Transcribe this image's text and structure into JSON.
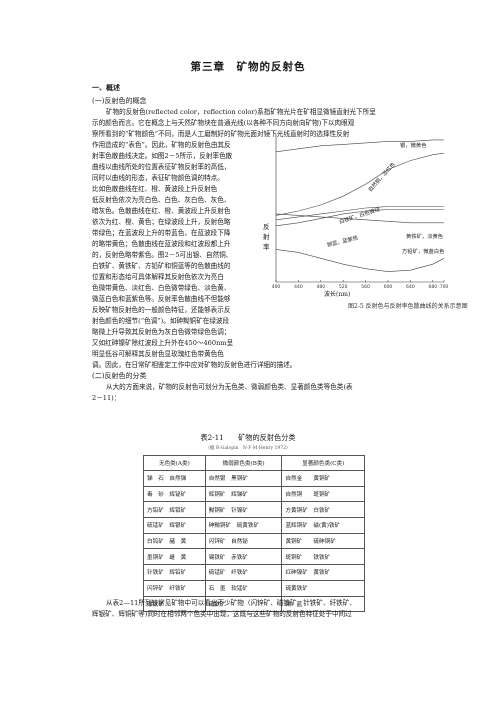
{
  "title": "第三章　矿物的反射色",
  "section1": "一、概述",
  "sub1": "(一)反射色的概念",
  "para1_lines": [
    "矿物的反射色(reflected color，reflection color)系指矿物光片在矿相显微镜直射光下所呈",
    "示的颜色而言。它在概念上与天然矿物块在普通光线(以各种不同方向射向矿物)下以肉眼观",
    "察所看到的“矿物颜色”不同，而是人工磨制好的矿物光面对镜下光线直射时的选择性反射",
    "作用造成的“表色”。因此，矿物的反射色由其反"
  ],
  "para1_left_lines": [
    "射率色散曲线决定。如图2－5所示，反射率色散",
    "曲线以曲线所处的位置表征矿物反射率的高低，",
    "同时以曲线的形态，表征矿物颜色调的特点。",
    "比如色散曲线在红、橙、黄波段上升反射色",
    "低反射色依次为亮白色、白色、灰白色、灰色、",
    "暗灰色。色散曲线在红、橙、黄波段上升反射色",
    "依次为红、橙、黄色；在绿波段上升，反射色略",
    "带绿色；在蓝波段上升的带蓝色，在蓝波段下降",
    "的略带黄色；色散曲线在蓝波段和红波段都上升",
    "的，反射色略带紫色。图2－5可出银、自然铜、",
    "白铁矿、黄铁矿、方铅矿和铜蓝等的色散曲线的",
    "位置和形态给可具体解释其反射色依次为亮白",
    "色微带黄色、淡红色、白色微带绿色、淡色黄、",
    "微蓝白色和蓝紫色等。反射率色散曲线不但能够",
    "反映矿物反射色的一般颜色特征，还能够表示反",
    "射色颜色的细节(“色调”)。如砷黝铜矿在绿波段",
    "略微上升导致其反射色为灰白色微带绿色色调；",
    "又如红砷镍矿除红波段上升外在450～460nm呈"
  ],
  "para1_end_lines": [
    "明显低谷可解释其反射色显玫瑰红色带黄色色",
    "调。因此，在日常矿相鉴定工作中应对矿物的反射色进行详细的描述。"
  ],
  "sub2": "(二)反射色的分类",
  "para2_lines": [
    "从大的方面来说，矿物的反射色可划分为无色类、微弱颜色类、显著颜色类等色类(表",
    "2－11)："
  ],
  "chart_data": {
    "type": "line",
    "title": "",
    "xlabel": "波长(nm)",
    "ylabel": "反射率",
    "xlim": [
      400,
      700
    ],
    "xticks": [
      400,
      440,
      480,
      520,
      560,
      600,
      640,
      680,
      700
    ],
    "series": [
      {
        "name": "银，微黄色",
        "x": [
          400,
          440,
          480,
          520,
          560,
          600,
          640,
          680,
          700
        ],
        "y": [
          88,
          90,
          92,
          93,
          94,
          95,
          95,
          96,
          96
        ]
      },
      {
        "name": "自然铜，淡红色",
        "x": [
          400,
          440,
          480,
          520,
          560,
          600,
          640,
          680,
          700
        ],
        "y": [
          45,
          48,
          52,
          58,
          66,
          76,
          82,
          86,
          87
        ]
      },
      {
        "name": "白铁矿，白色微绿",
        "x": [
          400,
          440,
          480,
          520,
          560,
          600,
          640,
          680,
          700
        ],
        "y": [
          42,
          44,
          46,
          48,
          50,
          51,
          51,
          51,
          51
        ]
      },
      {
        "name": "黄铁矿，淡黄色",
        "x": [
          400,
          440,
          480,
          520,
          560,
          600,
          640,
          680,
          700
        ],
        "y": [
          38,
          40,
          43,
          46,
          48,
          49,
          49,
          49,
          49
        ]
      },
      {
        "name": "方铅矿，微蓝白色",
        "x": [
          400,
          440,
          480,
          520,
          560,
          600,
          640,
          680,
          700
        ],
        "y": [
          46,
          45,
          44,
          43,
          42,
          41,
          40,
          40,
          40
        ]
      },
      {
        "name": "铜蓝，蓝紫色",
        "x": [
          400,
          440,
          480,
          520,
          560,
          600,
          640,
          680,
          700
        ],
        "y": [
          22,
          20,
          16,
          12,
          9,
          7,
          8,
          12,
          16
        ]
      }
    ]
  },
  "chart_labels": {
    "silver": "银，微黄色",
    "copper": "自然铜，淡红色",
    "marcasite": "白铁矿，白色微绿",
    "pyrite": "黄铁矿，淡黄色",
    "galena": "方铅矿，微蓝白色",
    "covellite": "铜蓝，蓝紫色",
    "ylabel": "反射率",
    "xlabel": "波长(nm)"
  },
  "caption": "图2-5 反射色与反射率色散曲线的关系示意图",
  "table_title": "表2-11　　矿物的反射色分类",
  "table_note": "（据 R·Galopin　N·F·M·Henry 1972）",
  "table_headers": [
    "无色类(A类)",
    "微弱颜色类(B类)",
    "显著颜色类(C类)"
  ],
  "table_rows": [
    [
      [
        "锑",
        "石"
      ],
      [
        "自然锑"
      ],
      [
        "黑铜矿"
      ],
      [
        "黝铜矿"
      ],
      [
        "自然金"
      ],
      [
        "黄铜矿"
      ]
    ],
    [
      [
        "辉",
        "砷"
      ],
      [
        "辉铜矿"
      ],
      [
        "辉铜矿"
      ],
      [
        "辉铜矿"
      ],
      [
        "自然铜"
      ],
      [
        "斑铜矿"
      ]
    ]
  ],
  "table_cells": [
    [
      "锑　石　自然锑",
      "自然银　黑铜矿",
      "自然金　　黄铜矿"
    ],
    [
      "毒　砂　辉铋矿",
      "辉铜矿　辉锑矿",
      "自然铜　　斑铜矿"
    ],
    [
      "方铅矿　辉钼矿",
      "黝铜矿　针镍矿",
      "方黄铜矿　白铁矿"
    ],
    [
      "硫锰矿　辉银矿",
      "砷黝铜矿　硫黄铁矿",
      "蓝辉铜矿　磁(黄)铁矿"
    ],
    [
      "白钨矿　赭　黄",
      "闪锌矿　自然铋",
      "黄铜矿　　硫砷铜矿"
    ],
    [
      "墨铜矿　雌　黄",
      "锡铁矿　赤铁矿",
      "斑铜矿　　铁铁矿"
    ],
    [
      "针铁矿　辉铅矿",
      "硫锰矿　纤铁矿",
      "红砷镍矿　黄铁矿"
    ],
    [
      "闪锌矿　纤铁矿",
      "石　墨　软锰矿",
      "硫黄铁矿"
    ],
    [
      "磁铁矿",
      "硫铁矿",
      "铜　蓝"
    ]
  ],
  "footer_lines": [
    "从表2—11所列较常见矿物中可以看出不少矿物（闪锌矿、磁铁矿、针铁矿、纤铁矿、",
    "辉银矿、辉铜矿等)同时在相邻两个色类中出现，这既与这些矿物的反射色特征处于中间过"
  ]
}
